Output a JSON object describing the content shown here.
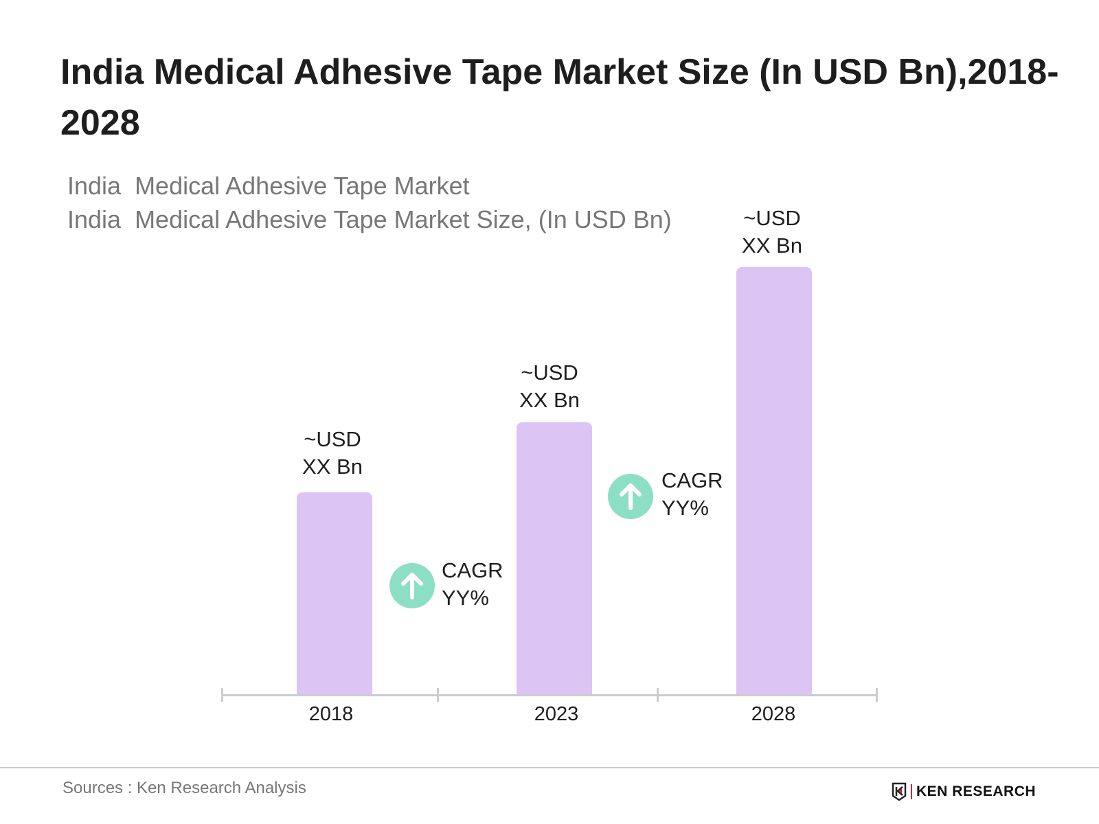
{
  "chart_data": {
    "type": "bar",
    "title": "India  Medical Adhesive Tape Market Size (In USD Bn),2018-2028",
    "subtitle": [
      "India  Medical Adhesive Tape Market",
      "India  Medical Adhesive Tape Market Size, (In USD Bn)"
    ],
    "categories": [
      "2018",
      "2023",
      "2028"
    ],
    "data_labels": [
      [
        "~USD",
        "XX Bn"
      ],
      [
        "~USD",
        "XX Bn"
      ],
      [
        "~USD",
        "XX Bn"
      ]
    ],
    "annotations": [
      {
        "between": [
          "2018",
          "2023"
        ],
        "lines": [
          "CAGR",
          "YY%"
        ],
        "icon": "arrow-up-icon"
      },
      {
        "between": [
          "2023",
          "2028"
        ],
        "lines": [
          "CAGR",
          "YY%"
        ],
        "icon": "arrow-up-icon"
      }
    ],
    "xlabel": "",
    "ylabel": "",
    "grid": false,
    "colors": {
      "bar": "#dcc4f5",
      "cagr_icon": "#8cdfc5",
      "axis": "#cccccc"
    }
  },
  "footer": {
    "source": "Sources : Ken Research Analysis",
    "logo_text": "KEN RESEARCH"
  }
}
